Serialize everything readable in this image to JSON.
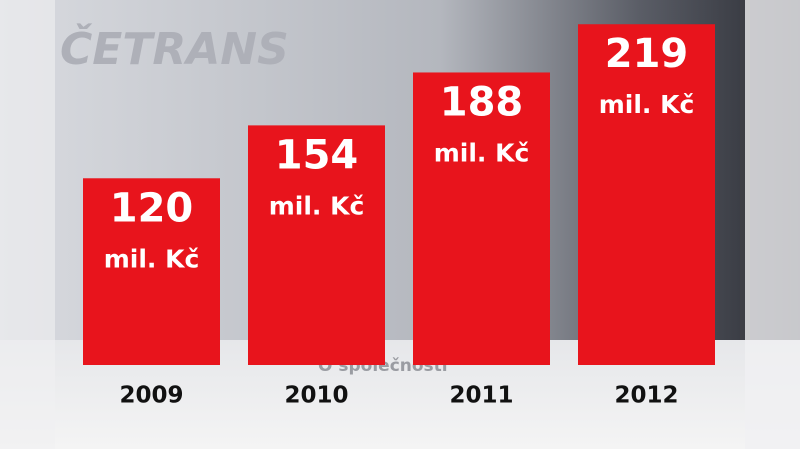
{
  "logo": "ČETRANS",
  "heading": "O společnosti",
  "chart_data": {
    "type": "bar",
    "categories": [
      "2009",
      "2010",
      "2011",
      "2012"
    ],
    "values": [
      120,
      154,
      188,
      219
    ],
    "unit_label": "mil. Kč",
    "color": "#e8141c"
  }
}
